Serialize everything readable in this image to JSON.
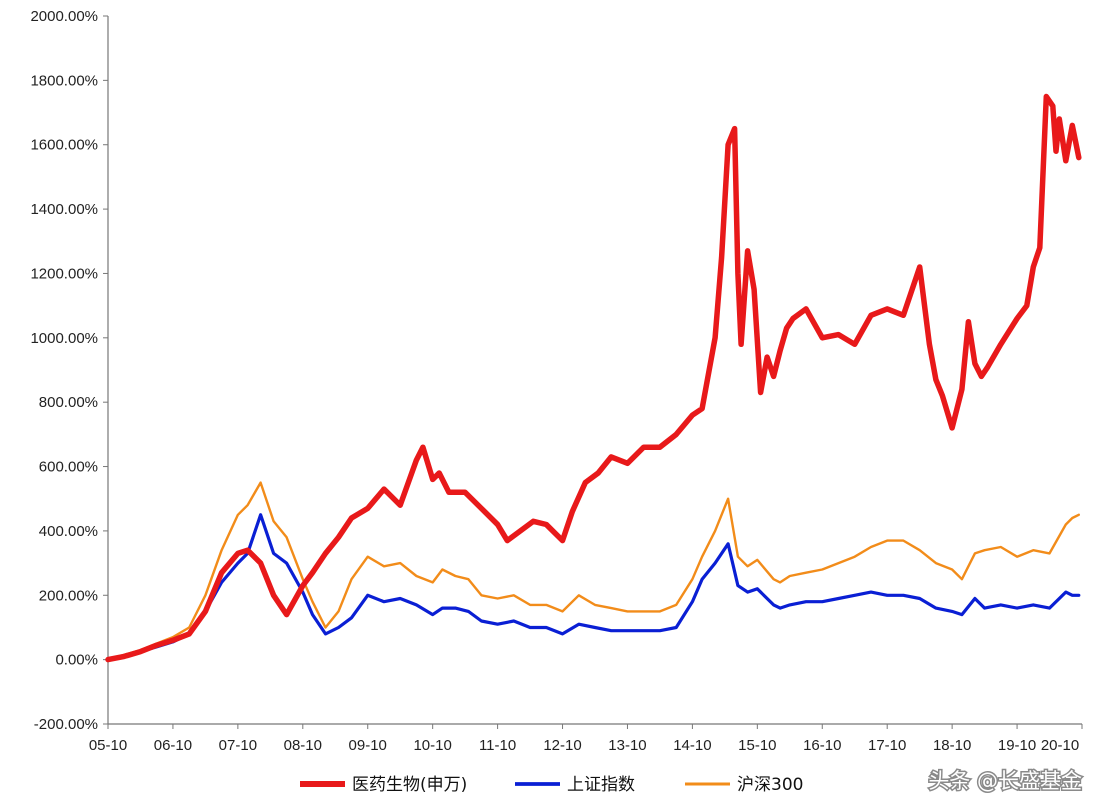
{
  "chart_data": {
    "type": "line",
    "title": "",
    "xlabel": "",
    "ylabel": "",
    "ylim": [
      -200,
      2000
    ],
    "y_ticks": [
      -200,
      0,
      200,
      400,
      600,
      800,
      1000,
      1200,
      1400,
      1600,
      1800,
      2000
    ],
    "y_tick_labels": [
      "-200.00%",
      "0.00%",
      "200.00%",
      "400.00%",
      "600.00%",
      "800.00%",
      "1000.00%",
      "1200.00%",
      "1400.00%",
      "1600.00%",
      "1800.00%",
      "2000.00%"
    ],
    "x_tick_labels": [
      "05-10",
      "06-10",
      "07-10",
      "08-10",
      "09-10",
      "10-10",
      "11-10",
      "12-10",
      "13-10",
      "14-10",
      "15-10",
      "16-10",
      "17-10",
      "18-10",
      "19-10",
      "20-10"
    ],
    "xlim": [
      2005.75,
      2020.75
    ],
    "grid": false,
    "legend_position": "bottom",
    "series": [
      {
        "name": "医药生物(申万)",
        "color": "#e8191a",
        "x": [
          2005.75,
          2006.0,
          2006.25,
          2006.5,
          2006.75,
          2007.0,
          2007.25,
          2007.5,
          2007.75,
          2007.9,
          2008.1,
          2008.3,
          2008.5,
          2008.75,
          2008.9,
          2009.1,
          2009.3,
          2009.5,
          2009.75,
          2010.0,
          2010.25,
          2010.5,
          2010.6,
          2010.75,
          2010.85,
          2011.0,
          2011.25,
          2011.5,
          2011.75,
          2011.9,
          2012.1,
          2012.3,
          2012.5,
          2012.75,
          2012.9,
          2013.1,
          2013.3,
          2013.5,
          2013.75,
          2014.0,
          2014.25,
          2014.5,
          2014.75,
          2014.9,
          2015.1,
          2015.2,
          2015.3,
          2015.4,
          2015.45,
          2015.5,
          2015.6,
          2015.7,
          2015.8,
          2015.9,
          2016.0,
          2016.1,
          2016.2,
          2016.3,
          2016.5,
          2016.75,
          2017.0,
          2017.25,
          2017.5,
          2017.75,
          2018.0,
          2018.25,
          2018.4,
          2018.5,
          2018.6,
          2018.75,
          2018.9,
          2019.0,
          2019.1,
          2019.2,
          2019.3,
          2019.5,
          2019.75,
          2019.9,
          2020.0,
          2020.1,
          2020.2,
          2020.3,
          2020.35,
          2020.4,
          2020.5,
          2020.6,
          2020.7
        ],
        "values": [
          0,
          10,
          25,
          45,
          60,
          80,
          150,
          270,
          330,
          340,
          300,
          200,
          140,
          230,
          270,
          330,
          380,
          440,
          470,
          530,
          480,
          620,
          660,
          560,
          580,
          520,
          520,
          470,
          420,
          370,
          400,
          430,
          420,
          370,
          460,
          550,
          580,
          630,
          610,
          660,
          660,
          700,
          760,
          780,
          1000,
          1250,
          1600,
          1650,
          1200,
          980,
          1270,
          1150,
          830,
          940,
          880,
          960,
          1030,
          1060,
          1090,
          1000,
          1010,
          980,
          1070,
          1090,
          1070,
          1220,
          980,
          870,
          820,
          720,
          840,
          1050,
          920,
          880,
          910,
          980,
          1060,
          1100,
          1220,
          1280,
          1750,
          1720,
          1580,
          1680,
          1550,
          1660,
          1560
        ]
      },
      {
        "name": "上证指数",
        "color": "#0a1fd4",
        "x": [
          2005.75,
          2006.0,
          2006.25,
          2006.5,
          2006.75,
          2007.0,
          2007.25,
          2007.5,
          2007.75,
          2007.9,
          2008.1,
          2008.3,
          2008.5,
          2008.75,
          2008.9,
          2009.1,
          2009.3,
          2009.5,
          2009.75,
          2010.0,
          2010.25,
          2010.5,
          2010.75,
          2010.9,
          2011.1,
          2011.3,
          2011.5,
          2011.75,
          2012.0,
          2012.25,
          2012.5,
          2012.75,
          2013.0,
          2013.25,
          2013.5,
          2013.75,
          2014.0,
          2014.25,
          2014.5,
          2014.75,
          2014.9,
          2015.1,
          2015.3,
          2015.45,
          2015.6,
          2015.75,
          2016.0,
          2016.1,
          2016.25,
          2016.5,
          2016.75,
          2017.0,
          2017.25,
          2017.5,
          2017.75,
          2018.0,
          2018.25,
          2018.5,
          2018.75,
          2018.9,
          2019.1,
          2019.25,
          2019.5,
          2019.75,
          2020.0,
          2020.25,
          2020.5,
          2020.6,
          2020.7
        ],
        "values": [
          0,
          10,
          25,
          40,
          55,
          80,
          150,
          240,
          300,
          330,
          450,
          330,
          300,
          210,
          140,
          80,
          100,
          130,
          200,
          180,
          190,
          170,
          140,
          160,
          160,
          150,
          120,
          110,
          120,
          100,
          100,
          80,
          110,
          100,
          90,
          90,
          90,
          90,
          100,
          180,
          250,
          300,
          360,
          230,
          210,
          220,
          170,
          160,
          170,
          180,
          180,
          190,
          200,
          210,
          200,
          200,
          190,
          160,
          150,
          140,
          190,
          160,
          170,
          160,
          170,
          160,
          210,
          200,
          200
        ]
      },
      {
        "name": "沪深300",
        "color": "#f28c1a",
        "x": [
          2005.75,
          2006.0,
          2006.25,
          2006.5,
          2006.75,
          2007.0,
          2007.25,
          2007.5,
          2007.75,
          2007.9,
          2008.1,
          2008.3,
          2008.5,
          2008.75,
          2008.9,
          2009.1,
          2009.3,
          2009.5,
          2009.75,
          2010.0,
          2010.25,
          2010.5,
          2010.75,
          2010.9,
          2011.1,
          2011.3,
          2011.5,
          2011.75,
          2012.0,
          2012.25,
          2012.5,
          2012.75,
          2013.0,
          2013.25,
          2013.5,
          2013.75,
          2014.0,
          2014.25,
          2014.5,
          2014.75,
          2014.9,
          2015.1,
          2015.3,
          2015.45,
          2015.6,
          2015.75,
          2016.0,
          2016.1,
          2016.25,
          2016.5,
          2016.75,
          2017.0,
          2017.25,
          2017.5,
          2017.75,
          2018.0,
          2018.25,
          2018.5,
          2018.75,
          2018.9,
          2019.1,
          2019.25,
          2019.5,
          2019.75,
          2020.0,
          2020.25,
          2020.5,
          2020.6,
          2020.7
        ],
        "values": [
          0,
          15,
          30,
          50,
          70,
          100,
          200,
          340,
          450,
          480,
          550,
          430,
          380,
          250,
          180,
          100,
          150,
          250,
          320,
          290,
          300,
          260,
          240,
          280,
          260,
          250,
          200,
          190,
          200,
          170,
          170,
          150,
          200,
          170,
          160,
          150,
          150,
          150,
          170,
          250,
          320,
          400,
          500,
          320,
          290,
          310,
          250,
          240,
          260,
          270,
          280,
          300,
          320,
          350,
          370,
          370,
          340,
          300,
          280,
          250,
          330,
          340,
          350,
          320,
          340,
          330,
          420,
          440,
          450
        ]
      }
    ]
  },
  "watermark": "头条 @长盛基金"
}
